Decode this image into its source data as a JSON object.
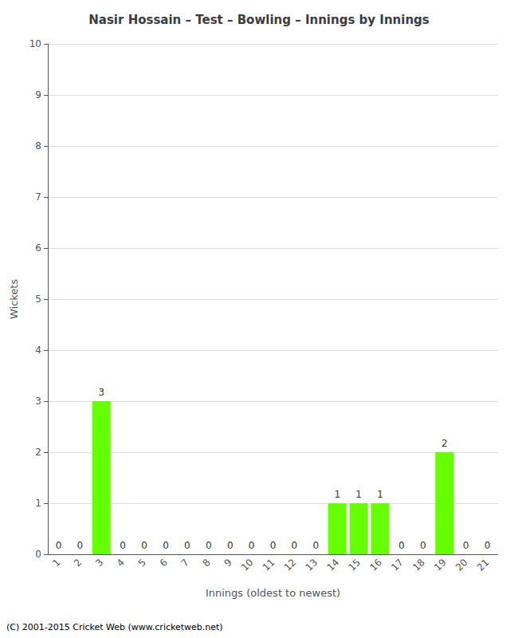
{
  "chart_data": {
    "type": "bar",
    "title": "Nasir Hossain – Test – Bowling – Innings by Innings",
    "xlabel": "Innings (oldest to newest)",
    "ylabel": "Wickets",
    "categories": [
      "1",
      "2",
      "3",
      "4",
      "5",
      "6",
      "7",
      "8",
      "9",
      "10",
      "11",
      "12",
      "13",
      "14",
      "15",
      "16",
      "17",
      "18",
      "19",
      "20",
      "21"
    ],
    "values": [
      0,
      0,
      3,
      0,
      0,
      0,
      0,
      0,
      0,
      0,
      0,
      0,
      0,
      1,
      1,
      1,
      0,
      0,
      2,
      0,
      0
    ],
    "color": "#66ff00",
    "ylim": [
      0,
      10
    ],
    "yticks": [
      0,
      1,
      2,
      3,
      4,
      5,
      6,
      7,
      8,
      9,
      10
    ],
    "grid": true,
    "data_labels": true,
    "footer": "(C) 2001-2015 Cricket Web (www.cricketweb.net)"
  }
}
